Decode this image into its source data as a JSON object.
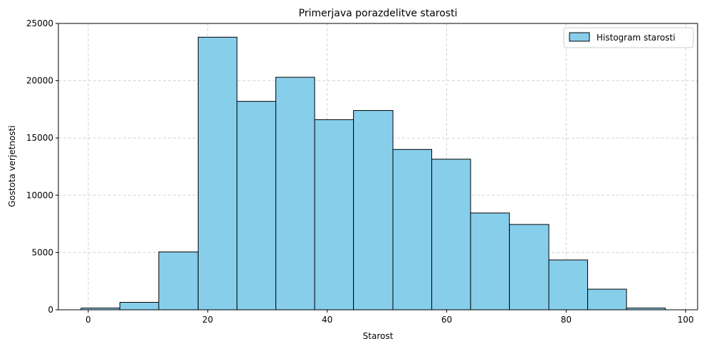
{
  "chart_data": {
    "type": "bar",
    "subtype": "histogram",
    "title": "Primerjava porazdelitve starosti",
    "xlabel": "Starost",
    "ylabel": "Gostota verjetnosti",
    "xlim": [
      -5,
      102
    ],
    "ylim": [
      0,
      25000
    ],
    "xticks": [
      0,
      20,
      40,
      60,
      80,
      100
    ],
    "yticks": [
      0,
      5000,
      10000,
      15000,
      20000,
      25000
    ],
    "grid": true,
    "legend_position": "top-right",
    "colors": {
      "bar_fill": "#87CEEB",
      "bar_edge": "#000000",
      "grid": "#d3d3d3"
    },
    "series": [
      {
        "name": "Histogram starosti",
        "bins": [
          {
            "start": -1.2,
            "end": 5.3,
            "value": 150
          },
          {
            "start": 5.3,
            "end": 11.8,
            "value": 650
          },
          {
            "start": 11.8,
            "end": 18.4,
            "value": 5050
          },
          {
            "start": 18.4,
            "end": 24.9,
            "value": 23800
          },
          {
            "start": 24.9,
            "end": 31.4,
            "value": 18200
          },
          {
            "start": 31.4,
            "end": 37.9,
            "value": 20300
          },
          {
            "start": 37.9,
            "end": 44.4,
            "value": 16600
          },
          {
            "start": 44.4,
            "end": 51.0,
            "value": 17400
          },
          {
            "start": 51.0,
            "end": 57.5,
            "value": 14000
          },
          {
            "start": 57.5,
            "end": 64.0,
            "value": 13150
          },
          {
            "start": 64.0,
            "end": 70.5,
            "value": 8450
          },
          {
            "start": 70.5,
            "end": 77.1,
            "value": 7450
          },
          {
            "start": 77.1,
            "end": 83.6,
            "value": 4350
          },
          {
            "start": 83.6,
            "end": 90.1,
            "value": 1800
          },
          {
            "start": 90.1,
            "end": 96.6,
            "value": 150
          }
        ]
      }
    ]
  }
}
